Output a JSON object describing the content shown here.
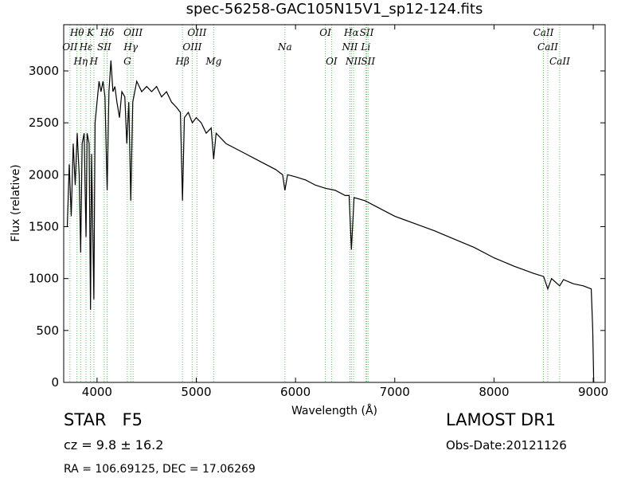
{
  "chart_data": {
    "type": "line",
    "title": "spec-56258-GAC105N15V1_sp12-124.fits",
    "x_label": "Wavelength (Å)",
    "y_label": "Flux (relative)",
    "xlim": [
      3664,
      9120
    ],
    "ylim": [
      0,
      3445
    ],
    "xticks": [
      4000,
      5000,
      6000,
      7000,
      8000,
      9000
    ],
    "yticks": [
      0,
      500,
      1000,
      1500,
      2000,
      2500,
      3000
    ],
    "series": [
      {
        "color": "#000000",
        "x": [
          3700,
          3720,
          3740,
          3760,
          3780,
          3800,
          3820,
          3835,
          3850,
          3870,
          3889,
          3900,
          3920,
          3934,
          3945,
          3968,
          3980,
          4000,
          4020,
          4040,
          4060,
          4080,
          4102,
          4120,
          4140,
          4160,
          4180,
          4200,
          4226,
          4250,
          4280,
          4300,
          4320,
          4340,
          4360,
          4400,
          4450,
          4500,
          4550,
          4600,
          4650,
          4700,
          4750,
          4800,
          4840,
          4861,
          4880,
          4920,
          4960,
          5000,
          5050,
          5100,
          5150,
          5175,
          5200,
          5250,
          5300,
          5400,
          5500,
          5600,
          5700,
          5800,
          5870,
          5893,
          5920,
          6000,
          6100,
          6200,
          6300,
          6400,
          6500,
          6540,
          6563,
          6590,
          6700,
          6800,
          6900,
          7000,
          7200,
          7400,
          7600,
          7800,
          8000,
          8200,
          8400,
          8500,
          8542,
          8580,
          8662,
          8700,
          8800,
          8900,
          8980,
          8995,
          9005
        ],
        "values": [
          1500,
          2100,
          1600,
          2300,
          1900,
          2400,
          2000,
          1250,
          2300,
          2400,
          1400,
          2400,
          2300,
          700,
          2200,
          800,
          2500,
          2700,
          2900,
          2800,
          2900,
          2750,
          1850,
          2800,
          3100,
          2800,
          2850,
          2700,
          2550,
          2800,
          2750,
          2300,
          2700,
          1750,
          2700,
          2900,
          2800,
          2850,
          2800,
          2850,
          2750,
          2800,
          2700,
          2650,
          2600,
          1750,
          2550,
          2600,
          2500,
          2550,
          2500,
          2400,
          2450,
          2150,
          2400,
          2350,
          2300,
          2250,
          2200,
          2150,
          2100,
          2050,
          2000,
          1850,
          2000,
          1980,
          1950,
          1900,
          1870,
          1850,
          1800,
          1800,
          1280,
          1780,
          1750,
          1700,
          1650,
          1600,
          1530,
          1460,
          1380,
          1300,
          1200,
          1120,
          1050,
          1020,
          900,
          1000,
          930,
          990,
          950,
          930,
          900,
          500,
          0
        ]
      }
    ],
    "line_color": "#66bb66",
    "annotations": [
      [
        {
          "label": "Hθ",
          "wavelength": 3798
        },
        {
          "label": "K",
          "wavelength": 3934
        },
        {
          "label": "Hδ",
          "wavelength": 4102
        },
        {
          "label": "OIII",
          "wavelength": 4363
        },
        {
          "label": "OIII",
          "wavelength": 5007
        },
        {
          "label": "OI",
          "wavelength": 6300
        },
        {
          "label": "Hα",
          "wavelength": 6563
        },
        {
          "label": "SII",
          "wavelength": 6717
        },
        {
          "label": "CaII",
          "wavelength": 8498
        }
      ],
      [
        {
          "label": "OII",
          "wavelength": 3727
        },
        {
          "label": "Hε",
          "wavelength": 3889
        },
        {
          "label": "SII",
          "wavelength": 4072
        },
        {
          "label": "Hγ",
          "wavelength": 4340
        },
        {
          "label": "OIII",
          "wavelength": 4959
        },
        {
          "label": "Na",
          "wavelength": 5893
        },
        {
          "label": "NII",
          "wavelength": 6548
        },
        {
          "label": "Li",
          "wavelength": 6707
        },
        {
          "label": "CaII",
          "wavelength": 8542
        }
      ],
      [
        {
          "label": "Hη",
          "wavelength": 3835
        },
        {
          "label": "H",
          "wavelength": 3968
        },
        {
          "label": "G",
          "wavelength": 4305
        },
        {
          "label": "Hβ",
          "wavelength": 4861
        },
        {
          "label": "Mg",
          "wavelength": 5175
        },
        {
          "label": "OI",
          "wavelength": 6363
        },
        {
          "label": "NII",
          "wavelength": 6584
        },
        {
          "label": "SII",
          "wavelength": 6731
        },
        {
          "label": "CaII",
          "wavelength": 8662
        }
      ]
    ],
    "object_class": "STAR   F5",
    "redshift": "cz = 9.8 ± 16.2",
    "coordinates": "RA = 106.69125, DEC = 17.06269",
    "release": "LAMOST DR1",
    "obs_date": "Obs-Date:20121126"
  }
}
